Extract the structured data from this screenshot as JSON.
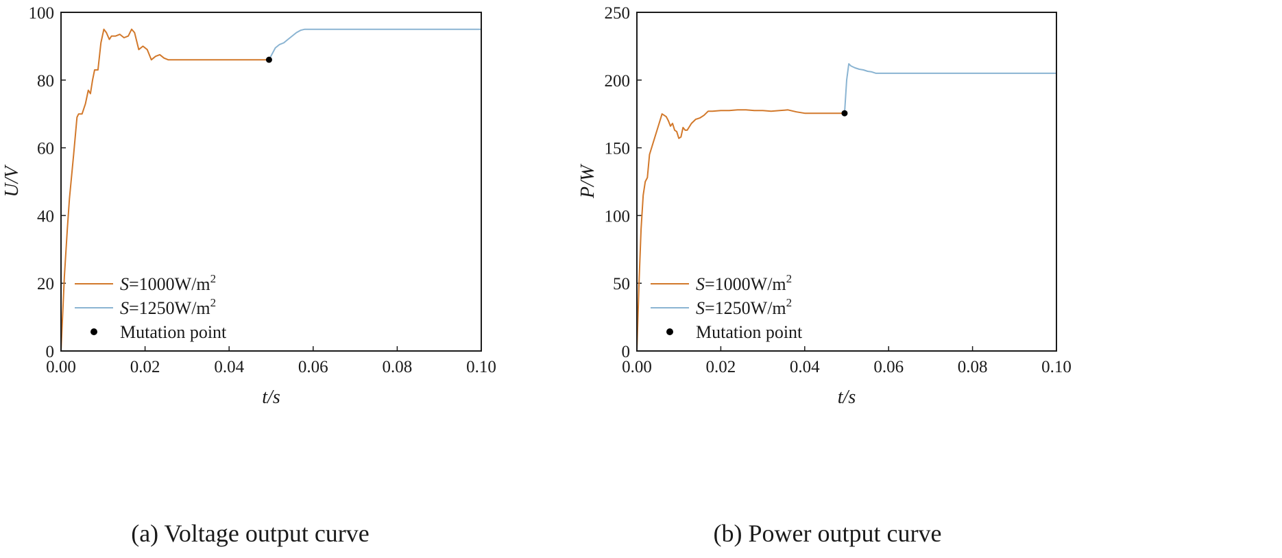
{
  "chart_data": [
    {
      "type": "line",
      "caption": "(a) Voltage output curve",
      "xlabel": "t/s",
      "ylabel": "U/V",
      "xlim": [
        0,
        0.1
      ],
      "ylim": [
        0,
        100
      ],
      "xticks": [
        "0.00",
        "0.02",
        "0.04",
        "0.06",
        "0.08",
        "0.10"
      ],
      "yticks": [
        "0",
        "20",
        "40",
        "60",
        "80",
        "100"
      ],
      "grid": false,
      "legend_position": "lower-left",
      "series": [
        {
          "name_prefix": "S",
          "name_rest": "=1000W/m",
          "name_sup": "2",
          "color": "#d2782a",
          "x": [
            0.0,
            0.0008,
            0.0015,
            0.002,
            0.003,
            0.0038,
            0.0042,
            0.005,
            0.0058,
            0.0065,
            0.007,
            0.0075,
            0.008,
            0.0088,
            0.0095,
            0.0102,
            0.0108,
            0.0115,
            0.012,
            0.013,
            0.014,
            0.015,
            0.016,
            0.0168,
            0.0175,
            0.0185,
            0.0195,
            0.0205,
            0.0215,
            0.0225,
            0.0235,
            0.0245,
            0.0255,
            0.027,
            0.03,
            0.035,
            0.04,
            0.045,
            0.0495
          ],
          "y": [
            0,
            22,
            36,
            45,
            58,
            69,
            70,
            70,
            73,
            77,
            76,
            80,
            83,
            83,
            91,
            95,
            94,
            92,
            93,
            93,
            93.5,
            92.5,
            93,
            95,
            94,
            89,
            90,
            89,
            86,
            87,
            87.5,
            86.5,
            86,
            86,
            86,
            86,
            86,
            86,
            86
          ]
        },
        {
          "name_prefix": "S",
          "name_rest": "=1250W/m",
          "name_sup": "2",
          "color": "#8ab4d2",
          "x": [
            0.0495,
            0.051,
            0.052,
            0.053,
            0.054,
            0.055,
            0.056,
            0.057,
            0.058,
            0.06,
            0.07,
            0.08,
            0.09,
            0.1
          ],
          "y": [
            86,
            89.5,
            90.5,
            91,
            92,
            93,
            94,
            94.7,
            95,
            95,
            95,
            95,
            95,
            95
          ]
        }
      ],
      "mutation_point": {
        "label": "Mutation point",
        "x": 0.0495,
        "y": 86
      }
    },
    {
      "type": "line",
      "caption": "(b) Power output curve",
      "xlabel": "t/s",
      "ylabel": "P/W",
      "xlim": [
        0,
        0.1
      ],
      "ylim": [
        0,
        250
      ],
      "xticks": [
        "0.00",
        "0.02",
        "0.04",
        "0.06",
        "0.08",
        "0.10"
      ],
      "yticks": [
        "0",
        "50",
        "100",
        "150",
        "200",
        "250"
      ],
      "grid": false,
      "legend_position": "lower-left",
      "series": [
        {
          "name_prefix": "S",
          "name_rest": "=1000W/m",
          "name_sup": "2",
          "color": "#d2782a",
          "x": [
            0.0,
            0.0005,
            0.001,
            0.0015,
            0.002,
            0.0025,
            0.003,
            0.004,
            0.005,
            0.006,
            0.0065,
            0.007,
            0.0075,
            0.008,
            0.0085,
            0.009,
            0.0095,
            0.01,
            0.0105,
            0.011,
            0.0115,
            0.012,
            0.013,
            0.014,
            0.015,
            0.016,
            0.017,
            0.018,
            0.02,
            0.022,
            0.024,
            0.026,
            0.028,
            0.03,
            0.032,
            0.034,
            0.036,
            0.038,
            0.04,
            0.045,
            0.0495
          ],
          "y": [
            0,
            50,
            90,
            115,
            125,
            128,
            145,
            155,
            165,
            175,
            174,
            173,
            170,
            166,
            168,
            163,
            162,
            157,
            158,
            165,
            163,
            163,
            168,
            171,
            172,
            174,
            177,
            177,
            177.5,
            177.5,
            178,
            178,
            177.5,
            177.5,
            177,
            177.5,
            178,
            176.5,
            175.5,
            175.5,
            175.5
          ]
        },
        {
          "name_prefix": "S",
          "name_rest": "=1250W/m",
          "name_sup": "2",
          "color": "#8ab4d2",
          "x": [
            0.0495,
            0.05,
            0.0505,
            0.051,
            0.052,
            0.053,
            0.054,
            0.055,
            0.056,
            0.057,
            0.058,
            0.06,
            0.07,
            0.08,
            0.09,
            0.1
          ],
          "y": [
            175.5,
            200,
            212,
            210.5,
            209,
            208,
            207.5,
            206.5,
            206,
            205,
            205,
            205,
            205,
            205,
            205,
            205
          ]
        }
      ],
      "mutation_point": {
        "label": "Mutation point",
        "x": 0.0495,
        "y": 175.5
      }
    }
  ]
}
